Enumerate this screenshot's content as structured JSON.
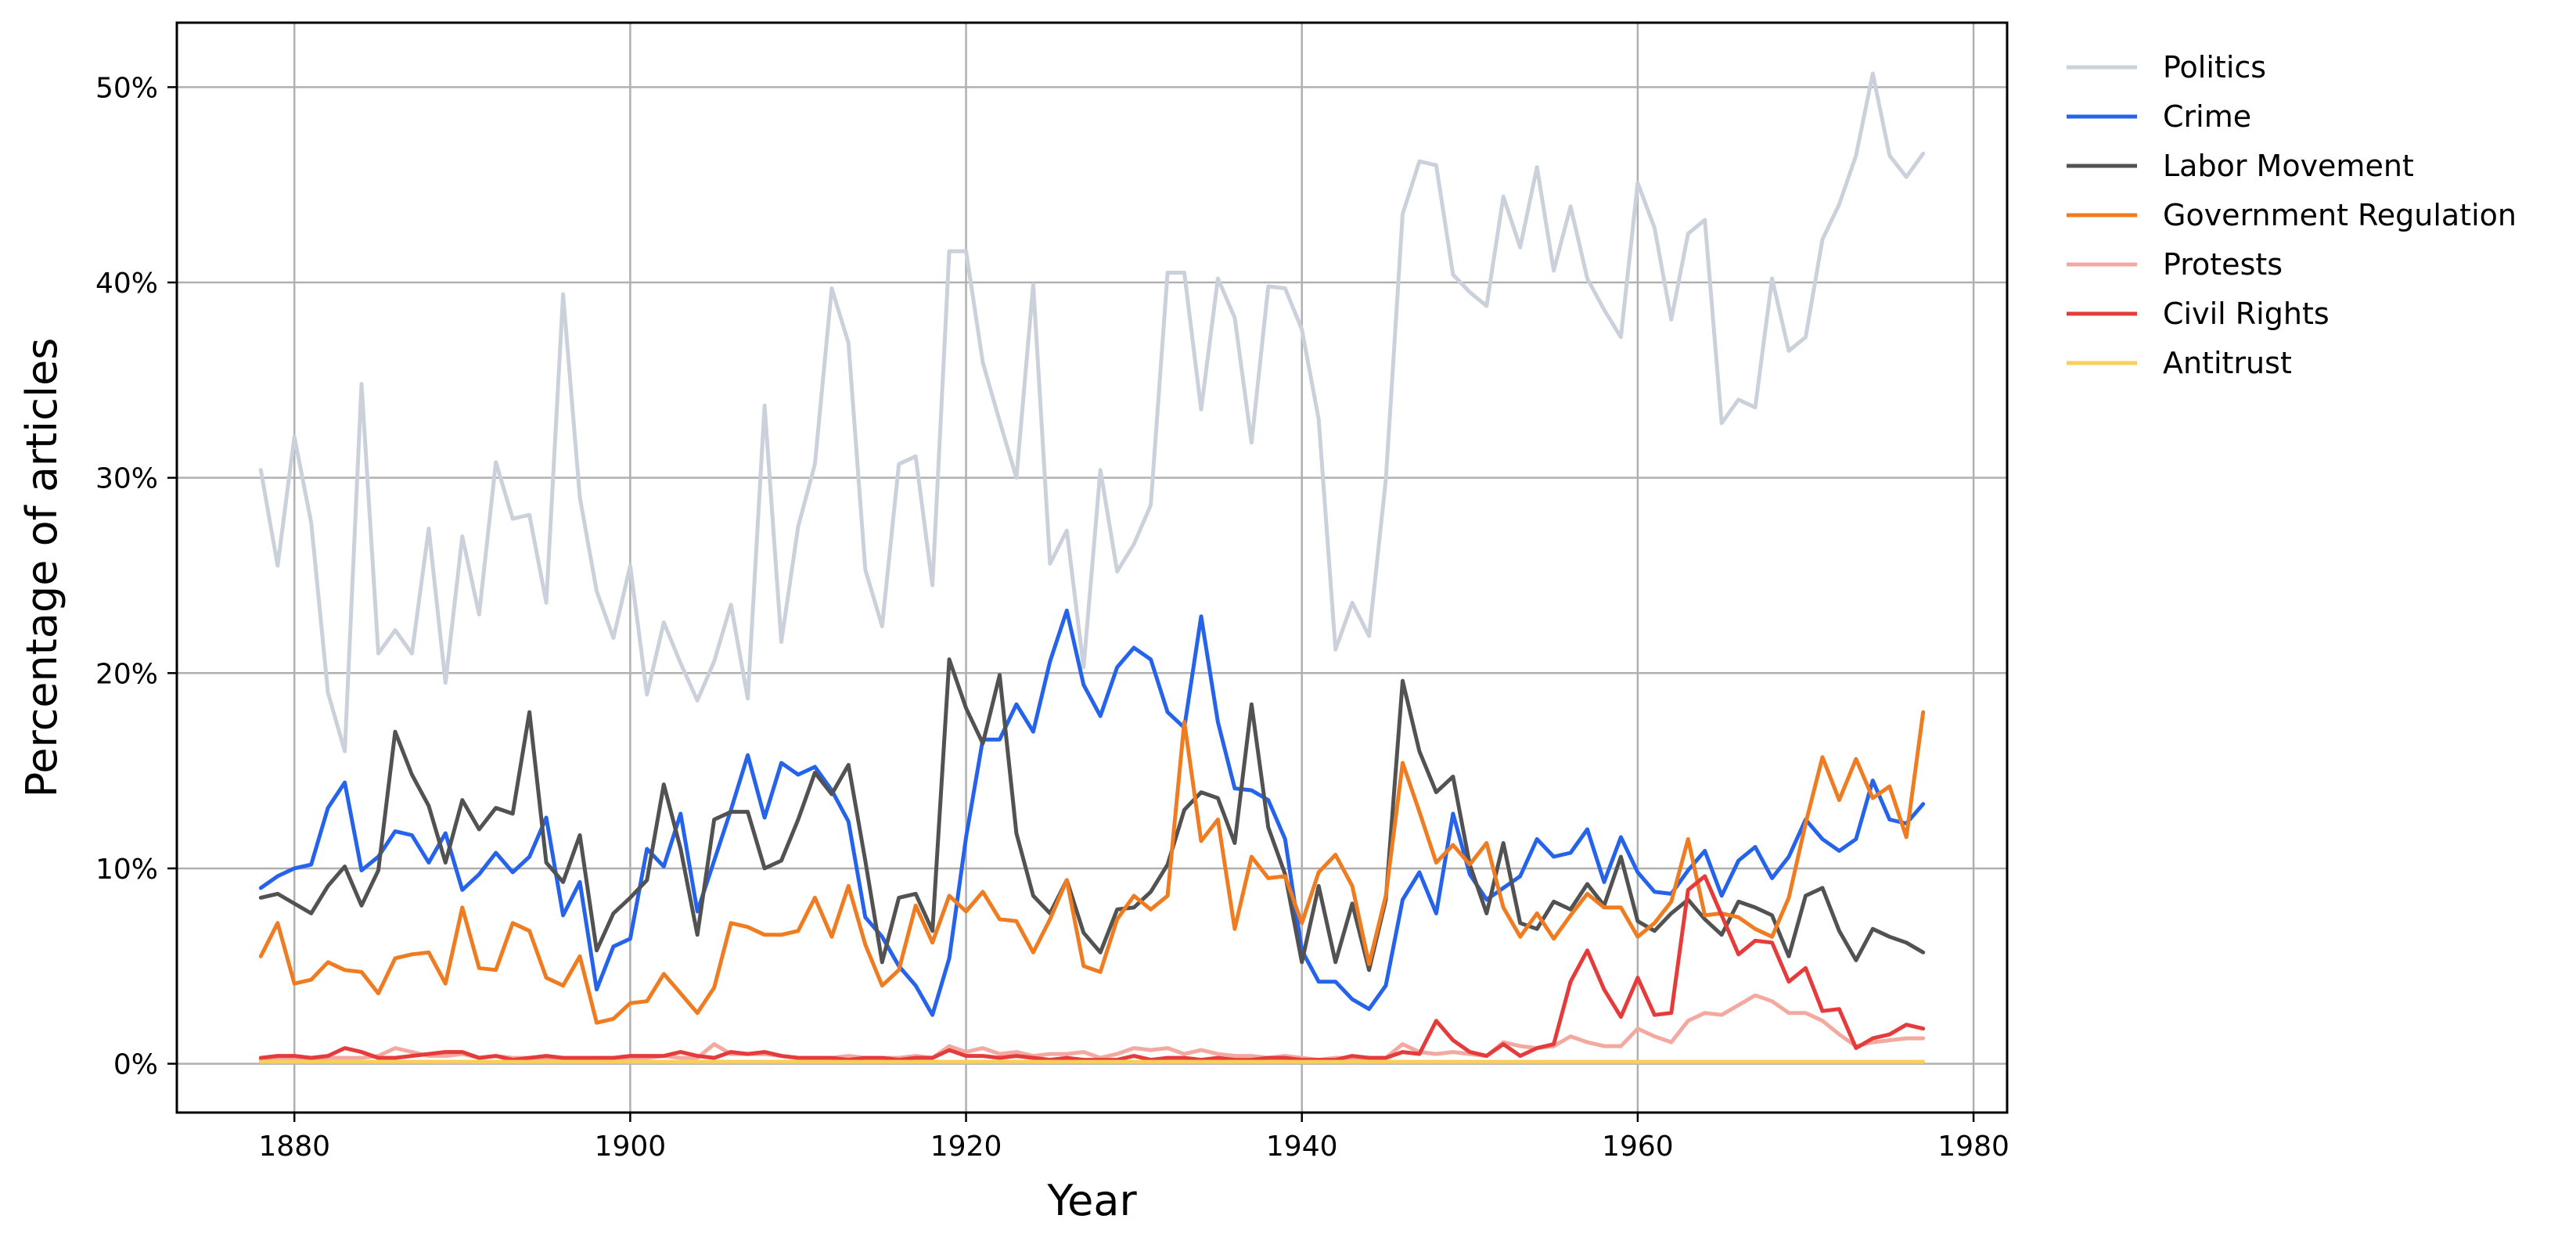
{
  "chart_data": {
    "type": "line",
    "title": "",
    "xlabel": "Year",
    "ylabel": "Percentage of articles",
    "xlim": [
      1873,
      1982
    ],
    "ylim": [
      -2.5,
      53.3
    ],
    "x_ticks": [
      1880,
      1900,
      1920,
      1940,
      1960,
      1980
    ],
    "x_tick_labels": [
      "1880",
      "1900",
      "1920",
      "1940",
      "1960",
      "1980"
    ],
    "y_ticks": [
      0,
      10,
      20,
      30,
      40,
      50
    ],
    "y_tick_labels": [
      "0%",
      "10%",
      "20%",
      "30%",
      "40%",
      "50%"
    ],
    "grid": true,
    "legend_position": "outside-right-top",
    "x_start": 1878,
    "x_end": 1977,
    "series": [
      {
        "name": "Politics",
        "color": "#cbd1db",
        "values": [
          30.4,
          25.5,
          32.1,
          27.7,
          19.0,
          16.0,
          34.8,
          21.0,
          22.2,
          21.0,
          27.4,
          19.5,
          27.0,
          23.0,
          30.8,
          27.9,
          28.1,
          23.6,
          39.4,
          29.0,
          24.2,
          21.8,
          25.5,
          18.9,
          22.6,
          20.5,
          18.6,
          20.6,
          23.5,
          18.7,
          33.7,
          21.6,
          27.5,
          30.7,
          39.7,
          36.9,
          25.3,
          22.4,
          30.7,
          31.1,
          24.5,
          41.6,
          41.6,
          35.9,
          32.9,
          30.0,
          39.9,
          25.6,
          27.3,
          20.3,
          30.4,
          25.2,
          26.6,
          28.6,
          40.5,
          40.5,
          33.5,
          40.2,
          38.2,
          31.8,
          39.8,
          39.7,
          37.6,
          33.0,
          21.2,
          23.6,
          21.9,
          29.9,
          43.5,
          46.2,
          46.0,
          40.4,
          39.5,
          38.8,
          44.4,
          41.8,
          45.9,
          40.6,
          43.9,
          40.2,
          38.6,
          37.2,
          45.1,
          42.8,
          38.1,
          42.5,
          43.2,
          32.8,
          34.0,
          33.6,
          40.2,
          36.5,
          37.2,
          42.2,
          44.0,
          46.5,
          50.7,
          46.5,
          45.4,
          46.6
        ]
      },
      {
        "name": "Crime",
        "color": "#2563eb",
        "values": [
          9.0,
          9.6,
          10.0,
          10.2,
          13.1,
          14.4,
          9.9,
          10.6,
          11.9,
          11.7,
          10.3,
          11.8,
          8.9,
          9.7,
          10.8,
          9.8,
          10.6,
          12.6,
          7.6,
          9.3,
          3.8,
          6.0,
          6.4,
          11.0,
          10.1,
          12.8,
          7.8,
          10.4,
          13.0,
          15.8,
          12.6,
          15.4,
          14.8,
          15.2,
          14.0,
          12.4,
          7.5,
          6.5,
          5.0,
          4.0,
          2.5,
          5.4,
          11.6,
          16.6,
          16.6,
          18.4,
          17.0,
          20.6,
          23.2,
          19.4,
          17.8,
          20.3,
          21.3,
          20.7,
          18.0,
          17.2,
          22.9,
          17.5,
          14.1,
          14.0,
          13.5,
          11.5,
          5.8,
          4.2,
          4.2,
          3.3,
          2.8,
          4.0,
          8.4,
          9.8,
          7.7,
          12.8,
          9.7,
          8.4,
          9.0,
          9.6,
          11.5,
          10.6,
          10.8,
          12.0,
          9.3,
          11.6,
          9.8,
          8.8,
          8.7,
          9.9,
          10.9,
          8.6,
          10.4,
          11.1,
          9.5,
          10.6,
          12.5,
          11.5,
          10.9,
          11.5,
          14.5,
          12.5,
          12.3,
          13.3
        ]
      },
      {
        "name": "Labor Movement",
        "color": "#525252",
        "values": [
          8.5,
          8.7,
          8.2,
          7.7,
          9.1,
          10.1,
          8.1,
          9.9,
          17.0,
          14.8,
          13.2,
          10.3,
          13.5,
          12.0,
          13.1,
          12.8,
          18.0,
          10.3,
          9.3,
          11.7,
          5.8,
          7.7,
          8.5,
          9.4,
          14.3,
          11.0,
          6.6,
          12.5,
          12.9,
          12.9,
          10.0,
          10.4,
          12.5,
          14.9,
          13.8,
          15.3,
          10.4,
          5.2,
          8.5,
          8.7,
          6.8,
          20.7,
          18.2,
          16.4,
          19.9,
          11.8,
          8.6,
          7.7,
          9.4,
          6.7,
          5.7,
          7.9,
          8.0,
          8.8,
          10.2,
          13.0,
          13.9,
          13.6,
          11.3,
          18.4,
          12.1,
          9.7,
          5.2,
          9.1,
          5.2,
          8.2,
          4.8,
          8.4,
          19.6,
          16.0,
          13.9,
          14.7,
          10.2,
          7.7,
          11.3,
          7.2,
          6.9,
          8.3,
          7.9,
          9.2,
          8.1,
          10.6,
          7.3,
          6.8,
          7.7,
          8.4,
          7.4,
          6.6,
          8.3,
          8.0,
          7.6,
          5.5,
          8.6,
          9.0,
          6.8,
          5.3,
          6.9,
          6.5,
          6.2,
          5.7
        ]
      },
      {
        "name": "Government Regulation",
        "color": "#f07c22",
        "values": [
          5.5,
          7.2,
          4.1,
          4.3,
          5.2,
          4.8,
          4.7,
          3.6,
          5.4,
          5.6,
          5.7,
          4.1,
          8.0,
          4.9,
          4.8,
          7.2,
          6.8,
          4.4,
          4.0,
          5.5,
          2.1,
          2.3,
          3.1,
          3.2,
          4.6,
          3.6,
          2.6,
          3.9,
          7.2,
          7.0,
          6.6,
          6.6,
          6.8,
          8.5,
          6.5,
          9.1,
          6.1,
          4.0,
          4.8,
          8.1,
          6.2,
          8.6,
          7.8,
          8.8,
          7.4,
          7.3,
          5.7,
          7.4,
          9.4,
          5.0,
          4.7,
          7.4,
          8.6,
          7.9,
          8.6,
          17.5,
          11.4,
          12.5,
          6.9,
          10.6,
          9.5,
          9.6,
          7.2,
          9.8,
          10.7,
          9.1,
          5.1,
          8.6,
          15.4,
          12.9,
          10.3,
          11.2,
          10.2,
          11.3,
          8.0,
          6.5,
          7.7,
          6.4,
          7.6,
          8.7,
          8.0,
          8.0,
          6.5,
          7.2,
          8.3,
          11.5,
          7.6,
          7.7,
          7.5,
          6.9,
          6.5,
          8.5,
          12.3,
          15.7,
          13.5,
          15.6,
          13.6,
          14.2,
          11.6,
          18.0
        ]
      },
      {
        "name": "Protests",
        "color": "#f4a9a0",
        "values": [
          0.2,
          0.3,
          0.2,
          0.2,
          0.3,
          0.3,
          0.3,
          0.4,
          0.8,
          0.6,
          0.4,
          0.4,
          0.5,
          0.3,
          0.4,
          0.3,
          0.3,
          0.3,
          0.3,
          0.2,
          0.3,
          0.3,
          0.3,
          0.3,
          0.4,
          0.3,
          0.3,
          1.0,
          0.5,
          0.5,
          0.5,
          0.4,
          0.3,
          0.3,
          0.3,
          0.4,
          0.3,
          0.3,
          0.3,
          0.4,
          0.3,
          0.9,
          0.6,
          0.8,
          0.5,
          0.6,
          0.4,
          0.5,
          0.5,
          0.6,
          0.3,
          0.5,
          0.8,
          0.7,
          0.8,
          0.5,
          0.7,
          0.5,
          0.4,
          0.4,
          0.3,
          0.4,
          0.3,
          0.2,
          0.3,
          0.3,
          0.3,
          0.3,
          1.0,
          0.6,
          0.5,
          0.6,
          0.5,
          0.4,
          1.1,
          0.9,
          0.8,
          0.9,
          1.4,
          1.1,
          0.9,
          0.9,
          1.8,
          1.4,
          1.1,
          2.2,
          2.6,
          2.5,
          3.0,
          3.5,
          3.2,
          2.6,
          2.6,
          2.2,
          1.5,
          0.9,
          1.1,
          1.2,
          1.3,
          1.3
        ]
      },
      {
        "name": "Civil Rights",
        "color": "#e63b3b",
        "values": [
          0.3,
          0.4,
          0.4,
          0.3,
          0.4,
          0.8,
          0.6,
          0.3,
          0.3,
          0.4,
          0.5,
          0.6,
          0.6,
          0.3,
          0.4,
          0.2,
          0.3,
          0.4,
          0.3,
          0.3,
          0.3,
          0.3,
          0.4,
          0.4,
          0.4,
          0.6,
          0.4,
          0.3,
          0.6,
          0.5,
          0.6,
          0.4,
          0.3,
          0.3,
          0.3,
          0.2,
          0.3,
          0.3,
          0.2,
          0.3,
          0.3,
          0.7,
          0.4,
          0.4,
          0.3,
          0.4,
          0.3,
          0.2,
          0.3,
          0.2,
          0.2,
          0.2,
          0.4,
          0.2,
          0.3,
          0.3,
          0.2,
          0.3,
          0.2,
          0.2,
          0.3,
          0.3,
          0.2,
          0.2,
          0.2,
          0.4,
          0.3,
          0.3,
          0.6,
          0.5,
          2.2,
          1.2,
          0.6,
          0.4,
          1.0,
          0.4,
          0.8,
          1.0,
          4.2,
          5.8,
          3.8,
          2.4,
          4.4,
          2.5,
          2.6,
          8.9,
          9.6,
          7.6,
          5.6,
          6.3,
          6.2,
          4.2,
          4.9,
          2.7,
          2.8,
          0.8,
          1.3,
          1.5,
          2.0,
          1.8
        ]
      },
      {
        "name": "Antitrust",
        "color": "#f7cf5a",
        "values": [
          0.1,
          0.1,
          0.1,
          0.1,
          0.1,
          0.1,
          0.1,
          0.1,
          0.1,
          0.1,
          0.1,
          0.1,
          0.1,
          0.1,
          0.1,
          0.1,
          0.1,
          0.1,
          0.1,
          0.1,
          0.1,
          0.1,
          0.1,
          0.1,
          0.1,
          0.1,
          0.1,
          0.1,
          0.1,
          0.1,
          0.1,
          0.1,
          0.1,
          0.1,
          0.1,
          0.1,
          0.1,
          0.1,
          0.1,
          0.1,
          0.1,
          0.1,
          0.1,
          0.1,
          0.1,
          0.1,
          0.1,
          0.1,
          0.1,
          0.1,
          0.1,
          0.1,
          0.1,
          0.1,
          0.1,
          0.1,
          0.1,
          0.1,
          0.1,
          0.1,
          0.1,
          0.1,
          0.1,
          0.1,
          0.1,
          0.1,
          0.1,
          0.1,
          0.1,
          0.1,
          0.1,
          0.1,
          0.1,
          0.1,
          0.1,
          0.1,
          0.1,
          0.1,
          0.1,
          0.1,
          0.1,
          0.1,
          0.1,
          0.1,
          0.1,
          0.1,
          0.1,
          0.1,
          0.1,
          0.1,
          0.1,
          0.1,
          0.1,
          0.1,
          0.1,
          0.1,
          0.1,
          0.1,
          0.1,
          0.1
        ]
      }
    ]
  }
}
